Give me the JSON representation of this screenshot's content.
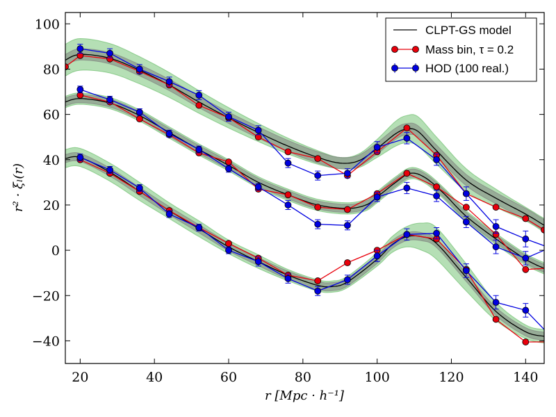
{
  "chart_data": {
    "type": "line",
    "title": "",
    "xlabel": "r  [Mpc · h⁻¹]",
    "ylabel": "r² · ξₗ(r)",
    "xlim": [
      16,
      145
    ],
    "ylim": [
      -50,
      105
    ],
    "xticks": [
      20,
      40,
      60,
      80,
      100,
      120,
      140
    ],
    "yticks": [
      -40,
      -20,
      0,
      20,
      40,
      60,
      80,
      100
    ],
    "x": [
      20,
      28,
      36,
      44,
      52,
      60,
      68,
      76,
      84,
      92,
      100,
      108,
      116,
      124,
      132,
      140
    ],
    "legend": {
      "position": "top-right",
      "entries": [
        {
          "label": "CLPT-GS model",
          "kind": "line"
        },
        {
          "label": "Mass bin, τ = 0.2",
          "kind": "mass"
        },
        {
          "label": "HOD (100 real.)",
          "kind": "hod"
        }
      ]
    },
    "colors": {
      "model": "#000000",
      "mass": "#e8000b",
      "hod": "#0000e0",
      "green_band": "#5cb85c",
      "gray_band": "#7a7a7a"
    },
    "groups": [
      {
        "name": "upper",
        "model": {
          "x": [
            16,
            20,
            28,
            36,
            44,
            52,
            60,
            68,
            76,
            84,
            90,
            95,
            100,
            105,
            108,
            111,
            116,
            124,
            132,
            140,
            145
          ],
          "y": [
            84,
            86.5,
            84.8,
            79.5,
            73,
            65.5,
            58.5,
            52,
            46,
            41,
            38.5,
            39.5,
            45,
            51.5,
            53.5,
            52.5,
            44,
            31,
            23,
            16,
            11
          ]
        },
        "gray_halfwidth": 2.5,
        "green_halfwidth": [
          7,
          7,
          6.5,
          6,
          5.5,
          5,
          4.5,
          4,
          3.5,
          3,
          2.5,
          3,
          4,
          5.5,
          6,
          6.5,
          6,
          5,
          4,
          3,
          3
        ],
        "mass_bin": [
          81,
          86,
          84.5,
          79,
          73,
          64,
          58.5,
          50,
          43.5,
          40.5,
          33,
          43.5,
          54,
          42,
          25,
          19,
          14,
          9
        ],
        "mass_bin_x": [
          16,
          20,
          28,
          36,
          44,
          52,
          60,
          68,
          76,
          84,
          92,
          100,
          108,
          116,
          124,
          132,
          140,
          145
        ],
        "hod": [
          89,
          87,
          80,
          74.5,
          68.5,
          59,
          53,
          38.5,
          33,
          34,
          45.5,
          49.5,
          40,
          25,
          10.5,
          5
        ],
        "hod_err": [
          2,
          2,
          2,
          2,
          2,
          2,
          2,
          2,
          2,
          2,
          2.5,
          2.5,
          2.5,
          3,
          3,
          3.5
        ],
        "hod_extend": {
          "x": [
            140,
            145
          ],
          "y": [
            5,
            2
          ]
        }
      },
      {
        "name": "middle",
        "model": {
          "x": [
            16,
            20,
            28,
            36,
            44,
            52,
            60,
            68,
            76,
            84,
            92,
            97,
            100,
            105,
            109,
            113,
            118,
            124,
            132,
            140,
            145
          ],
          "y": [
            65.5,
            67,
            65,
            59.5,
            52,
            44.5,
            37.5,
            30,
            24.5,
            20,
            18.5,
            20,
            23.5,
            30,
            34,
            32,
            25,
            15,
            5,
            -4,
            -8
          ]
        },
        "gray_halfwidth": 1.8,
        "green_halfwidth": [
          2.5,
          2.5,
          2.5,
          2.5,
          2.5,
          2.5,
          2.5,
          2.5,
          2.5,
          2.5,
          2.5,
          2.5,
          2.5,
          2.5,
          2.5,
          2.5,
          2.5,
          2.5,
          2.5,
          2.5,
          2.5
        ],
        "mass_bin": [
          68.5,
          65.5,
          58,
          51,
          43,
          39,
          27,
          24.5,
          19,
          18,
          25,
          34,
          28,
          19,
          7,
          -8.5
        ],
        "hod": [
          71,
          66.5,
          61,
          51.5,
          44.5,
          36,
          28,
          20,
          11.5,
          11,
          23.5,
          27.5,
          24,
          12.5,
          1.5,
          -3.5
        ],
        "hod_err": [
          1.5,
          1.5,
          1.5,
          1.5,
          1.5,
          1.5,
          1.5,
          2,
          2,
          2,
          2,
          2.5,
          2.5,
          2.5,
          3,
          3
        ],
        "mass_extend": {
          "x": [
            140,
            145
          ],
          "y": [
            -8.5,
            -8
          ]
        },
        "hod_extend": {
          "x": [
            140,
            145
          ],
          "y": [
            -3.5,
            0
          ]
        }
      },
      {
        "name": "lower",
        "model": {
          "x": [
            16,
            20,
            28,
            36,
            44,
            52,
            60,
            68,
            76,
            84,
            88,
            92,
            100,
            104,
            108,
            112,
            116,
            124,
            132,
            140,
            145
          ],
          "y": [
            40.5,
            41,
            34.5,
            26,
            17.5,
            9.5,
            1.5,
            -5,
            -11,
            -15.5,
            -16,
            -14,
            -4,
            2.5,
            6,
            6,
            3,
            -12,
            -27,
            -36,
            -38
          ]
        },
        "gray_halfwidth": 1.8,
        "green_halfwidth": [
          4,
          4,
          4,
          4,
          3.5,
          3.5,
          3,
          3,
          2.5,
          2.5,
          2.5,
          2.5,
          3,
          3.5,
          4.5,
          6,
          7,
          6,
          4,
          3,
          3
        ],
        "mass_bin": [
          40,
          34,
          26,
          17.5,
          10,
          3,
          -3.5,
          -11,
          -13.5,
          -5.5,
          0,
          7,
          5,
          -8.5,
          -30.5,
          -40.5
        ],
        "hod": [
          41,
          35.5,
          27.5,
          16,
          10,
          0,
          -5,
          -12.5,
          -18,
          -13,
          -2.5,
          7,
          7.5,
          -9,
          -23,
          -26.5
        ],
        "hod_err": [
          1.5,
          1.5,
          1.5,
          1.5,
          1.5,
          1.5,
          2,
          2,
          2,
          2,
          2.5,
          2.5,
          2.5,
          3,
          3,
          3
        ],
        "mass_extend": {
          "x": [
            140,
            145
          ],
          "y": [
            -40.5,
            -40.5
          ]
        },
        "hod_extend": {
          "x": [
            140,
            145
          ],
          "y": [
            -26.5,
            -35
          ]
        }
      }
    ]
  }
}
